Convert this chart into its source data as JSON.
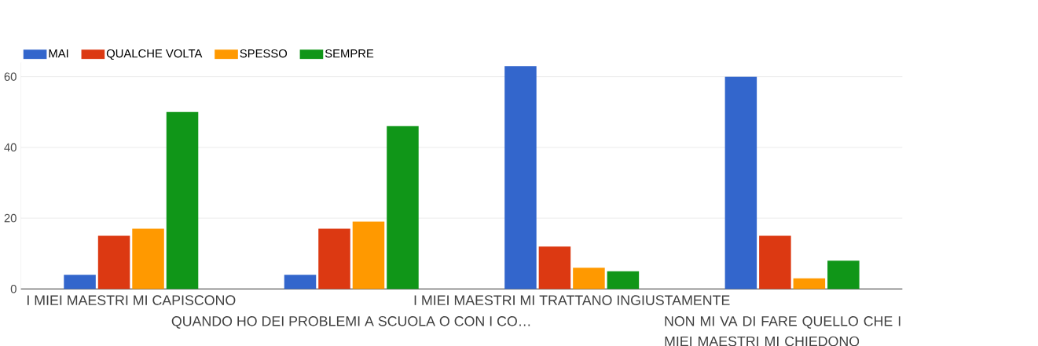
{
  "chart_data": {
    "type": "bar",
    "categories": [
      "I MIEI MAESTRI MI CAPISCONO",
      "QUANDO HO DEI PROBLEMI A SCUOLA O CON I CO…",
      "I MIEI MAESTRI MI TRATTANO INGIUSTAMENTE",
      "NON MI VA DI FARE QUELLO CHE I MIEI MAESTRI MI CHIEDONO"
    ],
    "series": [
      {
        "name": "MAI",
        "color": "#3366cc",
        "values": [
          4,
          4,
          63,
          60
        ]
      },
      {
        "name": "QUALCHE VOLTA",
        "color": "#dc3912",
        "values": [
          15,
          17,
          12,
          15
        ]
      },
      {
        "name": "SPESSO",
        "color": "#ff9900",
        "values": [
          17,
          19,
          6,
          3
        ]
      },
      {
        "name": "SEMPRE",
        "color": "#109618",
        "values": [
          50,
          46,
          5,
          8
        ]
      }
    ],
    "ylim": [
      0,
      64
    ],
    "yticks": [
      0,
      20,
      40,
      60
    ],
    "grid": "y",
    "legend": "top left"
  }
}
